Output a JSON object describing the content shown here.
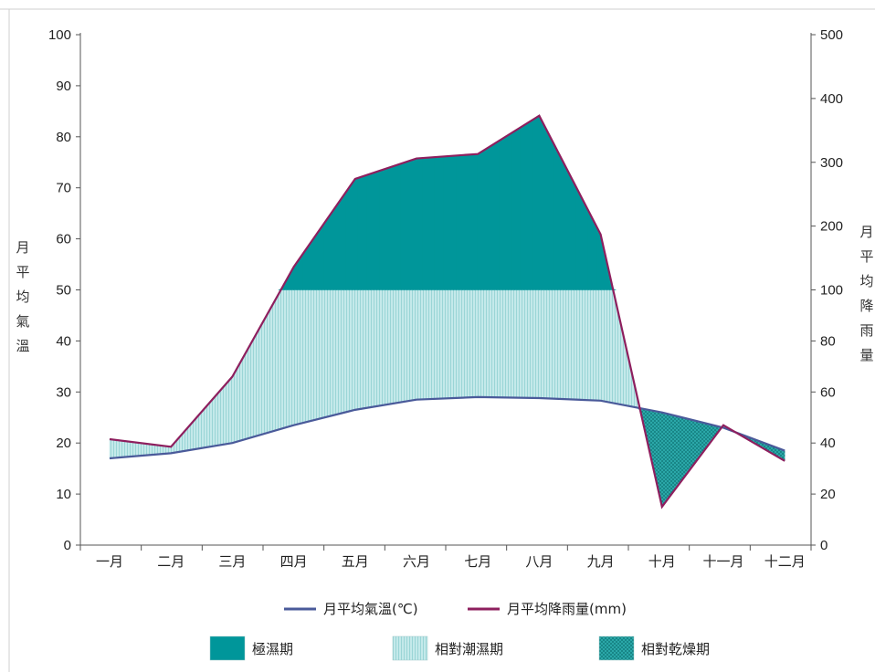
{
  "chart_data": {
    "type": "line",
    "categories": [
      "一月",
      "二月",
      "三月",
      "四月",
      "五月",
      "六月",
      "七月",
      "八月",
      "九月",
      "十月",
      "十一月",
      "十二月"
    ],
    "ylabel_left": [
      "月",
      "平",
      "均",
      "氣",
      "溫"
    ],
    "ylabel_right": [
      "月",
      "平",
      "均",
      "降",
      "雨",
      "量"
    ],
    "y_left_ticks": [
      "0",
      "10",
      "20",
      "30",
      "40",
      "50",
      "60",
      "70",
      "80",
      "90",
      "100"
    ],
    "y_right_ticks": [
      "0",
      "20",
      "40",
      "60",
      "80",
      "100",
      "200",
      "300",
      "400",
      "500"
    ],
    "y_left_range": [
      0,
      100
    ],
    "y_right_scale": "piecewise: 0–100 mm spans the lower half, 100–500 mm spans the upper half",
    "y_right_range": [
      0,
      500
    ],
    "series": [
      {
        "name": "月平均氣溫(℃)",
        "color": "#4a5a9a",
        "values": [
          17,
          18,
          20,
          23.5,
          26.5,
          28.5,
          29,
          28.8,
          28.3,
          26,
          23,
          18.5
        ]
      },
      {
        "name": "月平均降雨量(mm)",
        "color": "#8e1f5e",
        "values": [
          41.5,
          38.5,
          66,
          136,
          274,
          306,
          313,
          373,
          187,
          15,
          47,
          33
        ]
      }
    ],
    "fill_threshold_mm": 100,
    "legend": [
      {
        "label": "極濕期",
        "color": "#00989a",
        "pattern": "solid"
      },
      {
        "label": "相對潮濕期",
        "color": "#b8e3e4",
        "pattern": "vertical-hatch"
      },
      {
        "label": "相對乾燥期",
        "color": "#00989a",
        "pattern": "dots"
      }
    ],
    "grid": false
  }
}
